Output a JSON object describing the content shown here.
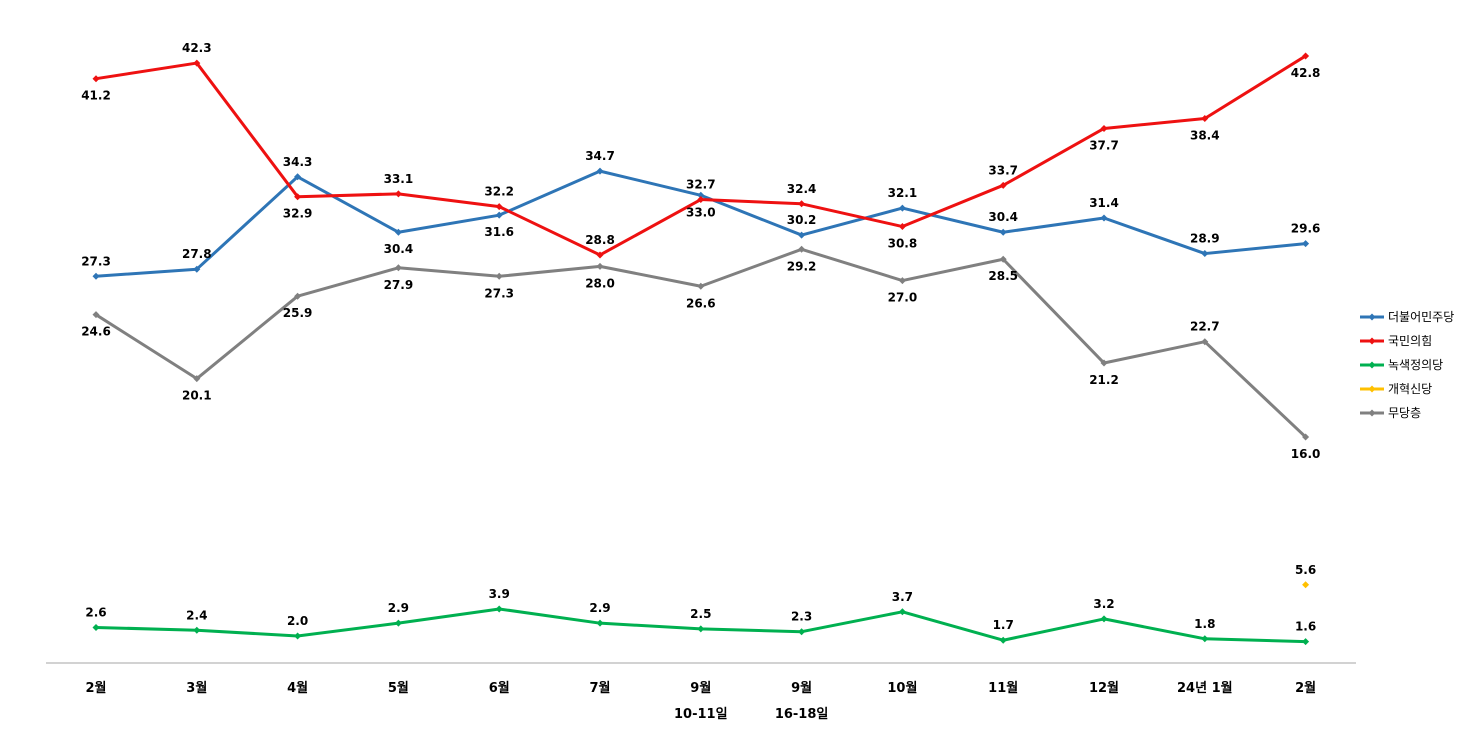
{
  "chart_data": {
    "type": "line",
    "title": "",
    "xlabel": "",
    "ylabel": "",
    "ylim": [
      0,
      45
    ],
    "grid": false,
    "legend_position": "right",
    "categories": [
      [
        "2월"
      ],
      [
        "3월"
      ],
      [
        "4월"
      ],
      [
        "5월"
      ],
      [
        "6월"
      ],
      [
        "7월"
      ],
      [
        "9월",
        "10-11일"
      ],
      [
        "9월",
        "16-18일"
      ],
      [
        "10월"
      ],
      [
        "11월"
      ],
      [
        "12월"
      ],
      [
        "24년 1월"
      ],
      [
        "2월"
      ]
    ],
    "series": [
      {
        "name": "더불어민주당",
        "color": "#2E75B6",
        "values": [
          27.3,
          27.8,
          34.3,
          30.4,
          31.6,
          34.7,
          33.0,
          30.2,
          32.1,
          30.4,
          31.4,
          28.9,
          29.6
        ]
      },
      {
        "name": "국민의힘",
        "color": "#EE1111",
        "values": [
          41.2,
          42.3,
          32.9,
          33.1,
          32.2,
          28.8,
          32.7,
          32.4,
          30.8,
          33.7,
          37.7,
          38.4,
          42.8
        ]
      },
      {
        "name": "녹색정의당",
        "color": "#00B050",
        "values": [
          2.6,
          2.4,
          2.0,
          2.9,
          3.9,
          2.9,
          2.5,
          2.3,
          3.7,
          1.7,
          3.2,
          1.8,
          1.6
        ]
      },
      {
        "name": "개혁신당",
        "color": "#FFC000",
        "values": [
          null,
          null,
          null,
          null,
          null,
          null,
          null,
          null,
          null,
          null,
          null,
          null,
          5.6
        ]
      },
      {
        "name": "무당층",
        "color": "#808080",
        "values": [
          24.6,
          20.1,
          25.9,
          27.9,
          27.3,
          28.0,
          26.6,
          29.2,
          27.0,
          28.5,
          21.2,
          22.7,
          16.0
        ]
      }
    ]
  }
}
